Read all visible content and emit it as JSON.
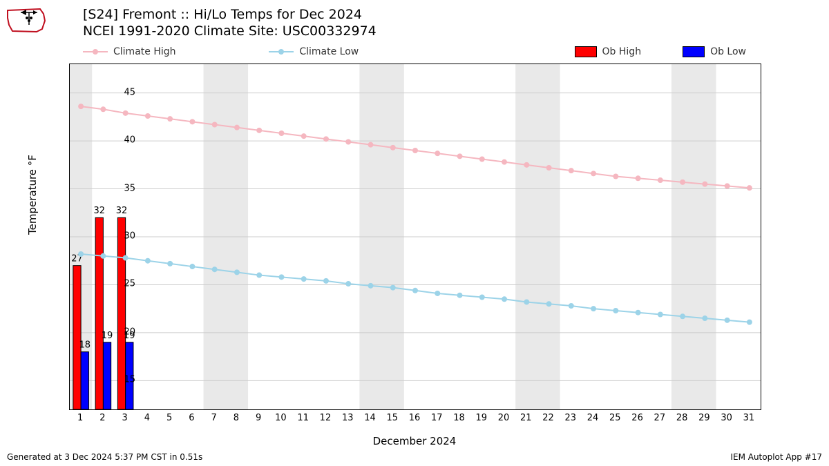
{
  "title": {
    "line1": "[S24] Fremont :: Hi/Lo Temps for Dec 2024",
    "line2": "NCEI 1991-2020 Climate Site: USC00332974"
  },
  "legend": {
    "climate_high": "Climate High",
    "climate_low": "Climate Low",
    "ob_high": "Ob High",
    "ob_low": "Ob Low"
  },
  "axes": {
    "y_label": "Temperature °F",
    "x_label": "December 2024",
    "ylim": [
      12,
      48
    ],
    "yticks": [
      15,
      20,
      25,
      30,
      35,
      40,
      45
    ],
    "xlim": [
      0.5,
      31.5
    ],
    "xticks_start": 1,
    "xticks_end": 31
  },
  "colors": {
    "climate_high": "#f5b7c0",
    "climate_low": "#9cd3e8",
    "ob_high_fill": "#ff0000",
    "ob_low_fill": "#0000ff",
    "bar_edge": "#000000",
    "grid": "#cccccc",
    "weekend_band": "#e9e9e9",
    "axis": "#000000",
    "text": "#000000",
    "background": "#ffffff"
  },
  "style": {
    "marker_radius": 4,
    "line_width": 2,
    "bar_width": 0.35,
    "grid_width": 1,
    "font_title": 19,
    "font_tick": 13,
    "font_axislabel": 15,
    "font_barlabel": 13
  },
  "weekend_bands": [
    [
      0.5,
      1.5
    ],
    [
      6.5,
      8.5
    ],
    [
      13.5,
      15.5
    ],
    [
      20.5,
      22.5
    ],
    [
      27.5,
      29.5
    ]
  ],
  "series": {
    "climate_high": [
      43.6,
      43.3,
      42.9,
      42.6,
      42.3,
      42.0,
      41.7,
      41.4,
      41.1,
      40.8,
      40.5,
      40.2,
      39.9,
      39.6,
      39.3,
      39.0,
      38.7,
      38.4,
      38.1,
      37.8,
      37.5,
      37.2,
      36.9,
      36.6,
      36.3,
      36.1,
      35.9,
      35.7,
      35.5,
      35.3,
      35.1
    ],
    "climate_low": [
      28.2,
      28.0,
      27.8,
      27.5,
      27.2,
      26.9,
      26.6,
      26.3,
      26.0,
      25.8,
      25.6,
      25.4,
      25.1,
      24.9,
      24.7,
      24.4,
      24.1,
      23.9,
      23.7,
      23.5,
      23.2,
      23.0,
      22.8,
      22.5,
      22.3,
      22.1,
      21.9,
      21.7,
      21.5,
      21.3,
      21.1
    ],
    "ob_high": [
      27,
      32,
      32
    ],
    "ob_low": [
      18,
      19,
      19
    ]
  },
  "footer": {
    "left": "Generated at 3 Dec 2024 5:37 PM CST in 0.51s",
    "right": "IEM Autoplot App #17"
  }
}
